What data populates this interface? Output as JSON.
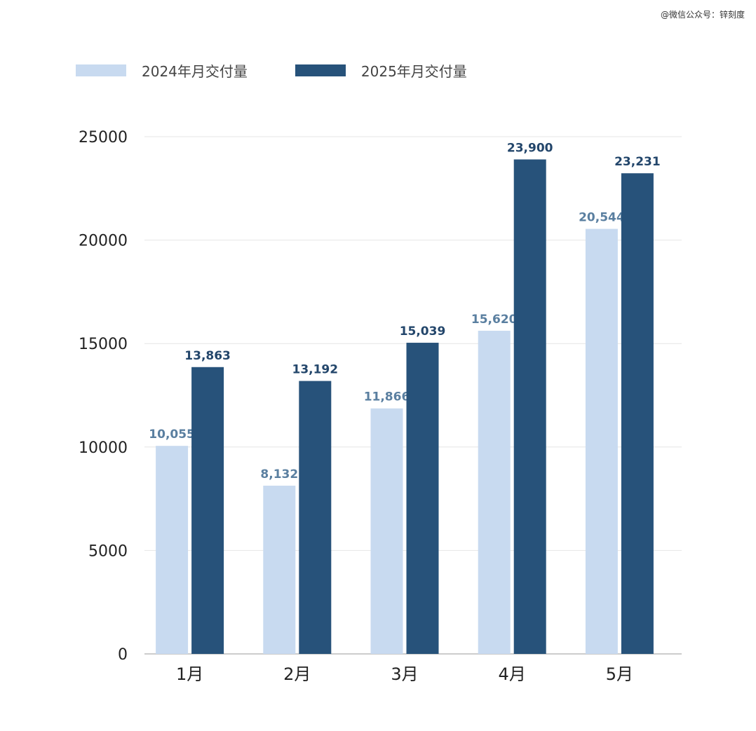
{
  "watermark": "@微信公众号：锌刻度",
  "colors": {
    "series_2024": "#c8daf0",
    "series_2025": "#27527a",
    "label_2024": "#5a7fa0",
    "label_2025": "#23466b",
    "grid": "#e6e6e6",
    "axis": "#999999"
  },
  "chart_data": {
    "type": "bar",
    "title": "",
    "xlabel": "",
    "ylabel": "",
    "categories": [
      "1月",
      "2月",
      "3月",
      "4月",
      "5月"
    ],
    "series": [
      {
        "name": "2024年月交付量",
        "values": [
          10055,
          8132,
          11866,
          15620,
          20544
        ],
        "labels": [
          "10,055",
          "8,132",
          "11,866",
          "15,620",
          "20,544"
        ]
      },
      {
        "name": "2025年月交付量",
        "values": [
          13863,
          13192,
          15039,
          23900,
          23231
        ],
        "labels": [
          "13,863",
          "13,192",
          "15,039",
          "23,900",
          "23,231"
        ]
      }
    ],
    "ylim": [
      0,
      25000
    ],
    "yticks": [
      0,
      5000,
      10000,
      15000,
      20000,
      25000
    ],
    "ytick_labels": [
      "0",
      "5000",
      "10000",
      "15000",
      "20000",
      "25000"
    ],
    "grid": true,
    "legend": "top-left"
  }
}
